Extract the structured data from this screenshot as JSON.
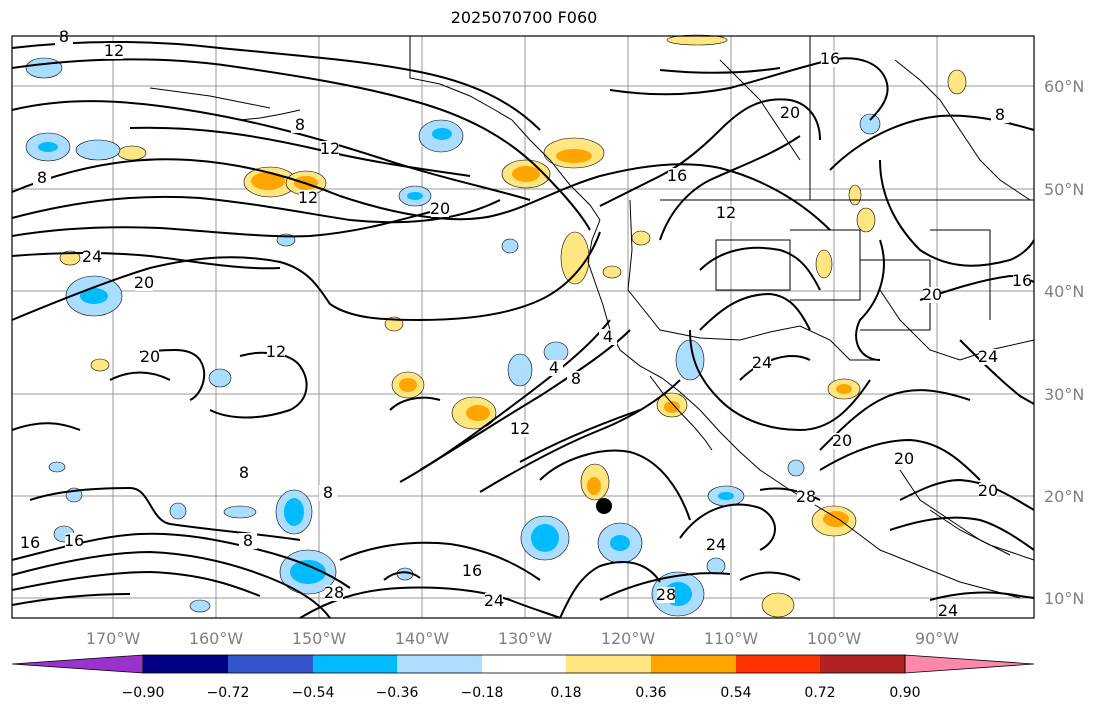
{
  "title": "2025070700 F060",
  "map": {
    "lon_ticks": [
      "170°W",
      "160°W",
      "150°W",
      "140°W",
      "130°W",
      "120°W",
      "110°W",
      "100°W",
      "90°W"
    ],
    "lat_ticks": [
      "60°N",
      "50°N",
      "40°N",
      "30°N",
      "20°N",
      "10°N"
    ],
    "contour_labels": [
      "8",
      "12",
      "8",
      "12",
      "12",
      "8",
      "20",
      "24",
      "20",
      "12",
      "16",
      "20",
      "16",
      "12",
      "20",
      "8",
      "16",
      "4",
      "8",
      "12",
      "8",
      "8",
      "16",
      "16",
      "8",
      "28",
      "24",
      "28",
      "24",
      "24",
      "28",
      "20",
      "20",
      "20",
      "24",
      "24",
      "16",
      "20",
      "4"
    ],
    "marker": "storm-center-dot"
  },
  "colorbar": {
    "tick_labels": [
      "−0.90",
      "−0.72",
      "−0.54",
      "−0.36",
      "−0.18",
      "0.18",
      "0.36",
      "0.54",
      "0.72",
      "0.90"
    ],
    "colors": [
      "#9933cc",
      "#000080",
      "#3355cc",
      "#00bbff",
      "#aaddff",
      "#ffffff",
      "#ffe680",
      "#ffa500",
      "#ff3300",
      "#b22222",
      "#ff88aa"
    ]
  }
}
